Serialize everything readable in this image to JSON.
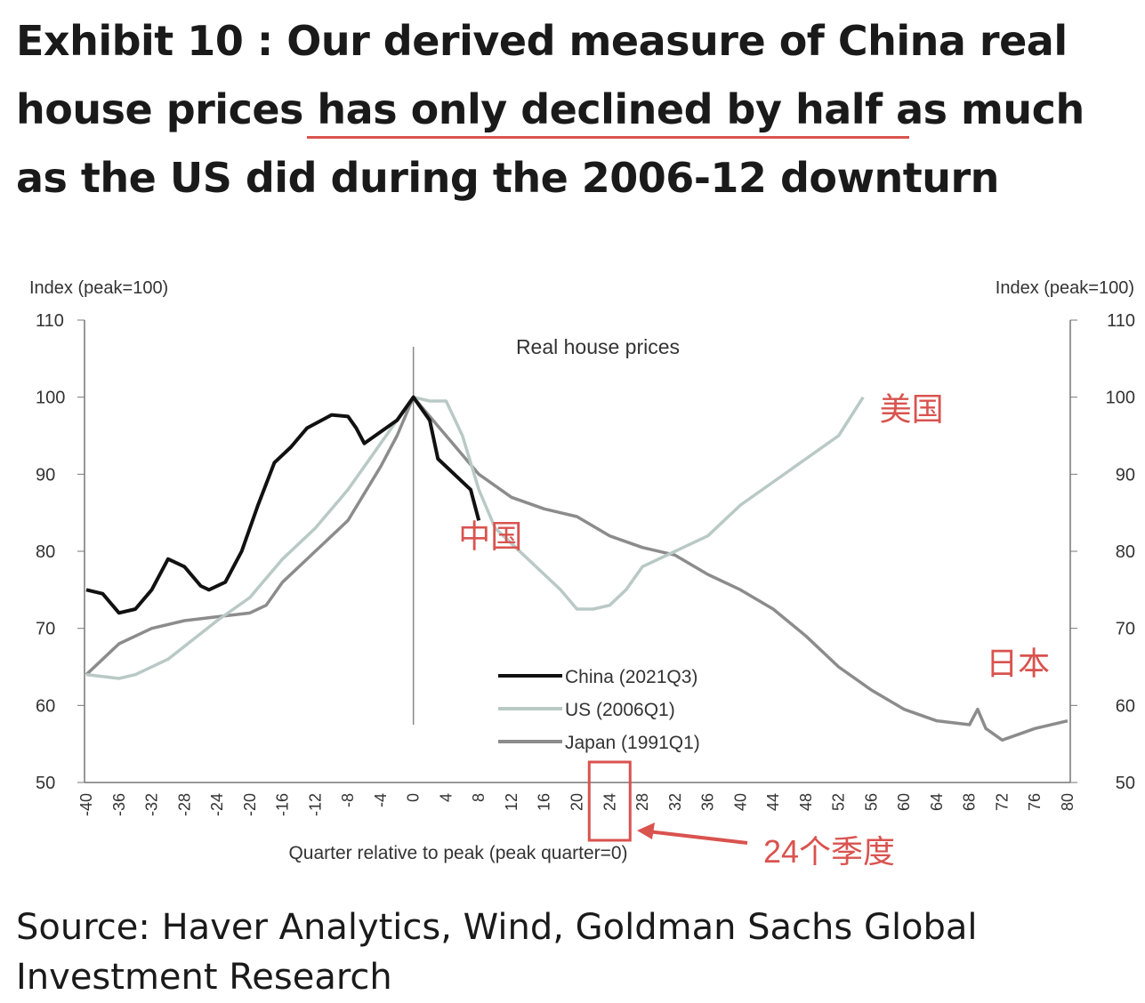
{
  "title": "Exhibit 10 : Our derived measure of China real house prices has only declined by half as much as the US did during the 2006-12 downturn",
  "source": "Source: Haver Analytics, Wind, Goldman Sachs Global Investment Research",
  "chart_data": {
    "type": "line",
    "title": "Real house prices",
    "xlabel": "Quarter relative to peak (peak quarter=0)",
    "ylabel_left": "Index (peak=100)",
    "ylabel_right": "Index (peak=100)",
    "xlim": [
      -40,
      80
    ],
    "ylim": [
      50,
      110
    ],
    "xticks": [
      -40,
      -36,
      -32,
      -28,
      -24,
      -20,
      -16,
      -12,
      -8,
      -4,
      0,
      4,
      8,
      12,
      16,
      20,
      24,
      28,
      32,
      36,
      40,
      44,
      48,
      52,
      56,
      60,
      64,
      68,
      72,
      76,
      80
    ],
    "yticks": [
      50,
      60,
      70,
      80,
      90,
      100,
      110
    ],
    "legend_position": "bottom-center",
    "series": [
      {
        "name": "China (2021Q3)",
        "color": "#111111",
        "x": [
          -40,
          -38,
          -36,
          -34,
          -32,
          -30,
          -28,
          -26,
          -25,
          -23,
          -21,
          -19,
          -17,
          -15,
          -13,
          -10,
          -8,
          -7,
          -6,
          -4,
          -2,
          0,
          2,
          3,
          5,
          7,
          8
        ],
        "y": [
          75,
          74.5,
          72,
          72.5,
          75,
          79,
          78,
          75.5,
          75,
          76,
          80,
          86,
          91.5,
          93.5,
          96,
          97.7,
          97.5,
          96,
          94,
          95.5,
          97,
          100,
          97,
          92,
          90,
          88,
          84
        ]
      },
      {
        "name": "US (2006Q1)",
        "color": "#b9c9c5",
        "x": [
          -40,
          -36,
          -34,
          -30,
          -24,
          -20,
          -16,
          -12,
          -8,
          -4,
          -2,
          0,
          2,
          4,
          6,
          8,
          10,
          12,
          16,
          18,
          20,
          22,
          24,
          26,
          28,
          32,
          36,
          40,
          44,
          48,
          52,
          55
        ],
        "y": [
          64,
          63.5,
          64,
          66,
          71,
          74,
          79,
          83,
          88,
          94,
          97,
          100,
          99.5,
          99.5,
          95,
          88,
          83,
          81,
          77,
          75,
          72.5,
          72.5,
          73,
          75,
          78,
          80,
          82,
          86,
          89,
          92,
          95,
          100
        ]
      },
      {
        "name": "Japan (1991Q1)",
        "color": "#8c8c8c",
        "x": [
          -40,
          -36,
          -32,
          -28,
          -24,
          -20,
          -18,
          -16,
          -12,
          -8,
          -4,
          -2,
          0,
          4,
          8,
          12,
          16,
          20,
          24,
          28,
          32,
          36,
          40,
          44,
          48,
          52,
          56,
          60,
          64,
          68,
          69,
          70,
          72,
          76,
          80
        ],
        "y": [
          64,
          68,
          70,
          71,
          71.5,
          72,
          73,
          76,
          80,
          84,
          91,
          95,
          100,
          95,
          90,
          87,
          85.5,
          84.5,
          82,
          80.5,
          79.5,
          77,
          75,
          72.5,
          69,
          65,
          62,
          59.5,
          58,
          57.5,
          59.5,
          57,
          55.5,
          57,
          58
        ]
      }
    ],
    "annotations": [
      {
        "text": "中国",
        "x": 5.5,
        "y": 80.5
      },
      {
        "text": "美国",
        "x": 57,
        "y": 97
      },
      {
        "text": "日本",
        "x": 70,
        "y": 64
      },
      {
        "text": "24个季度",
        "x": 43,
        "y": 53,
        "highlight_tick": 24
      }
    ],
    "annotation_color": "#d9534f"
  }
}
